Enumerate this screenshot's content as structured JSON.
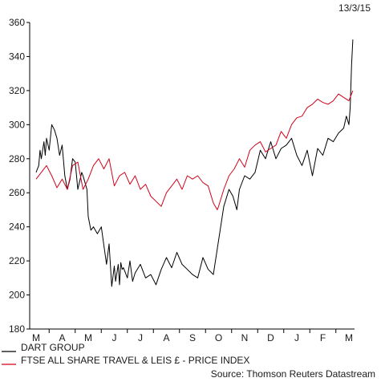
{
  "chart_data": {
    "type": "line",
    "date_label": "13/3/15",
    "yticks": [
      180,
      200,
      220,
      240,
      260,
      280,
      300,
      320,
      340,
      360
    ],
    "ylim": [
      180,
      360
    ],
    "month_labels": [
      "M",
      "A",
      "M",
      "J",
      "J",
      "A",
      "S",
      "O",
      "N",
      "D",
      "J",
      "F",
      "M"
    ],
    "grid": false,
    "legend_position": "bottom-left",
    "source": "Source: Thomson Reuters Datastream",
    "series": [
      {
        "name": "DART GROUP",
        "color": "#000000",
        "x": [
          0,
          0.1,
          0.15,
          0.2,
          0.3,
          0.35,
          0.4,
          0.5,
          0.6,
          0.7,
          0.8,
          0.9,
          1,
          1.1,
          1.2,
          1.3,
          1.4,
          1.5,
          1.6,
          1.75,
          1.8,
          1.95,
          2,
          2.1,
          2.2,
          2.35,
          2.5,
          2.7,
          2.8,
          2.9,
          3,
          3.05,
          3.15,
          3.2,
          3.25,
          3.3,
          3.35,
          3.4,
          3.5,
          3.6,
          3.7,
          3.8,
          4,
          4.2,
          4.4,
          4.6,
          4.8,
          5,
          5.2,
          5.4,
          5.6,
          5.8,
          6,
          6.2,
          6.4,
          6.6,
          6.8,
          7,
          7.2,
          7.4,
          7.55,
          7.7,
          7.8,
          8,
          8.2,
          8.4,
          8.6,
          8.8,
          9,
          9.2,
          9.4,
          9.6,
          9.8,
          10,
          10.2,
          10.4,
          10.6,
          10.8,
          11,
          11.2,
          11.4,
          11.6,
          11.8,
          11.9,
          12,
          12.05,
          12.1,
          12.15
        ],
        "values": [
          272,
          276,
          285,
          280,
          290,
          282,
          292,
          285,
          300,
          297,
          292,
          282,
          288,
          270,
          262,
          268,
          280,
          278,
          262,
          272,
          270,
          262,
          246,
          238,
          240,
          236,
          240,
          218,
          230,
          205,
          217,
          208,
          218,
          206,
          219,
          215,
          216,
          214,
          210,
          220,
          208,
          213,
          218,
          210,
          212,
          206,
          215,
          222,
          216,
          225,
          218,
          215,
          212,
          210,
          222,
          215,
          212,
          232,
          252,
          262,
          258,
          250,
          262,
          270,
          268,
          272,
          285,
          280,
          290,
          280,
          286,
          288,
          292,
          282,
          276,
          285,
          270,
          286,
          282,
          292,
          290,
          295,
          298,
          305,
          300,
          310,
          335,
          350
        ]
      },
      {
        "name": "FTSE ALL SHARE TRAVEL & LEIS £ - PRICE INDEX",
        "color": "#d0021b",
        "x": [
          0,
          0.2,
          0.4,
          0.6,
          0.8,
          1,
          1.2,
          1.4,
          1.6,
          1.8,
          2,
          2.2,
          2.4,
          2.6,
          2.8,
          3,
          3.2,
          3.4,
          3.6,
          3.8,
          4,
          4.2,
          4.4,
          4.6,
          4.8,
          5,
          5.2,
          5.4,
          5.6,
          5.8,
          6,
          6.2,
          6.4,
          6.6,
          6.8,
          6.95,
          7,
          7.2,
          7.4,
          7.6,
          7.8,
          8,
          8.2,
          8.4,
          8.6,
          8.8,
          9,
          9.2,
          9.4,
          9.6,
          9.8,
          10,
          10.2,
          10.4,
          10.6,
          10.8,
          11,
          11.2,
          11.4,
          11.6,
          11.8,
          12,
          12.15
        ],
        "values": [
          268,
          272,
          276,
          270,
          263,
          268,
          262,
          276,
          278,
          262,
          268,
          276,
          280,
          274,
          280,
          264,
          270,
          272,
          265,
          270,
          262,
          265,
          258,
          255,
          252,
          260,
          264,
          268,
          262,
          270,
          268,
          270,
          266,
          264,
          254,
          250,
          252,
          262,
          270,
          274,
          280,
          275,
          285,
          288,
          290,
          284,
          286,
          288,
          296,
          292,
          300,
          304,
          305,
          310,
          312,
          315,
          313,
          312,
          314,
          318,
          316,
          314,
          320
        ]
      }
    ]
  }
}
